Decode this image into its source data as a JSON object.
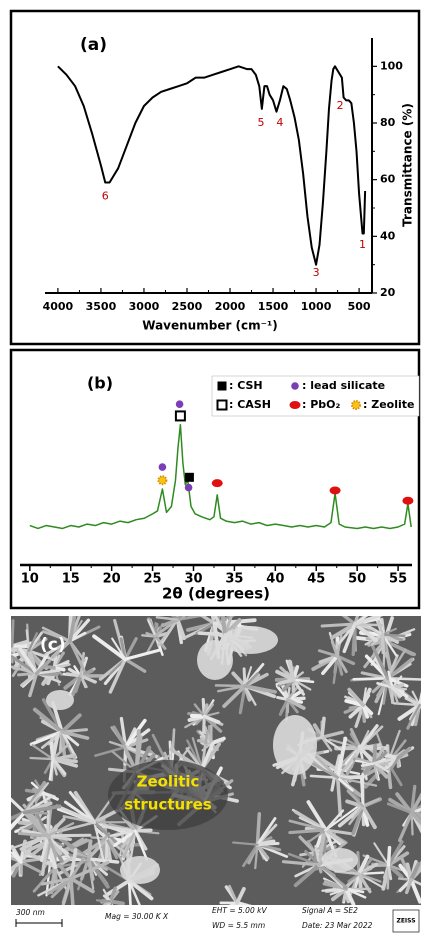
{
  "chart_data": [
    {
      "type": "line",
      "title": "(a)",
      "x_label": "Wavenumber (cm⁻¹)",
      "y_label": "Transmittance (%)",
      "color": "#000000",
      "x": [
        4000,
        3900,
        3800,
        3700,
        3600,
        3500,
        3450,
        3400,
        3300,
        3200,
        3100,
        3000,
        2900,
        2800,
        2700,
        2600,
        2500,
        2450,
        2400,
        2300,
        2200,
        2100,
        2000,
        1900,
        1800,
        1750,
        1700,
        1660,
        1630,
        1600,
        1570,
        1540,
        1500,
        1460,
        1420,
        1380,
        1340,
        1300,
        1250,
        1200,
        1150,
        1100,
        1050,
        1000,
        960,
        920,
        880,
        850,
        820,
        800,
        780,
        740,
        700,
        680,
        650,
        620,
        590,
        560,
        530,
        500,
        480,
        460,
        445,
        430
      ],
      "values": [
        100,
        97,
        93,
        86,
        76,
        65,
        59,
        59,
        64,
        72,
        80,
        86,
        89,
        91,
        92,
        93,
        94,
        95,
        96,
        96,
        97,
        98,
        99,
        100,
        99,
        99,
        97,
        93,
        85,
        93,
        93,
        90,
        88,
        84,
        88,
        93,
        92,
        88,
        82,
        74,
        62,
        47,
        36,
        30,
        37,
        52,
        70,
        85,
        95,
        99,
        100,
        98,
        96,
        89,
        88,
        88,
        87,
        80,
        70,
        55,
        48,
        41,
        41,
        56
      ],
      "xlim": [
        4150,
        350
      ],
      "xticks": [
        4000,
        3500,
        3000,
        2500,
        2000,
        1500,
        1000,
        500
      ],
      "ylim": [
        20,
        110
      ],
      "yticks": [
        20,
        40,
        60,
        80,
        100
      ],
      "annotations": [
        {
          "text": "6",
          "x": 3450,
          "y": 54
        },
        {
          "text": "5",
          "x": 1640,
          "y": 80
        },
        {
          "text": "4",
          "x": 1420,
          "y": 80
        },
        {
          "text": "3",
          "x": 1000,
          "y": 27
        },
        {
          "text": "2",
          "x": 720,
          "y": 86
        },
        {
          "text": "1",
          "x": 460,
          "y": 37
        }
      ]
    },
    {
      "type": "line",
      "title": "(b)",
      "x_label": "2θ (degrees)",
      "color": "#2e8b1f",
      "x": [
        10,
        11,
        12,
        13,
        14,
        15,
        16,
        17,
        18,
        19,
        20,
        21,
        22,
        23,
        24,
        25,
        25.6,
        26.2,
        26.7,
        27.3,
        27.8,
        28.1,
        28.4,
        28.7,
        29.0,
        29.3,
        29.7,
        30.2,
        31,
        32,
        32.5,
        32.9,
        33.3,
        34,
        35,
        36,
        37,
        38,
        39,
        40,
        41,
        42,
        43,
        44,
        45,
        46,
        46.8,
        47.3,
        47.8,
        48.5,
        50,
        51,
        52,
        53,
        54,
        55,
        55.8,
        56.2,
        56.6
      ],
      "values": [
        27,
        25,
        27,
        26,
        25,
        27,
        26,
        28,
        27,
        29,
        28,
        30,
        29,
        31,
        32,
        35,
        37,
        52,
        36,
        40,
        58,
        80,
        96,
        70,
        55,
        58,
        40,
        35,
        33,
        31,
        33,
        48,
        32,
        30,
        29,
        30,
        28,
        29,
        27,
        28,
        27,
        26,
        27,
        26,
        27,
        26,
        29,
        49,
        28,
        26,
        25,
        26,
        25,
        26,
        25,
        26,
        28,
        42,
        26
      ],
      "xlim": [
        8.8,
        56.7
      ],
      "xticks": [
        10,
        15,
        20,
        25,
        30,
        35,
        40,
        45,
        50,
        55
      ],
      "ylim": [
        0,
        130
      ],
      "phases": [
        {
          "name": ": CSH",
          "shape": "filled-square",
          "color": "#000000",
          "points": [
            {
              "x": 29.5,
              "y": 60
            }
          ]
        },
        {
          "name": ": lead silicate",
          "shape": "circle",
          "color": "#7b3fb5",
          "points": [
            {
              "x": 28.3,
              "y": 110
            },
            {
              "x": 26.2,
              "y": 67
            },
            {
              "x": 29.4,
              "y": 53
            }
          ]
        },
        {
          "name": ": CASH",
          "shape": "open-square",
          "color": "#000000",
          "points": [
            {
              "x": 28.4,
              "y": 102
            }
          ]
        },
        {
          "name": ": PbO₂",
          "shape": "ellipse",
          "color": "#e01010",
          "points": [
            {
              "x": 32.9,
              "y": 56
            },
            {
              "x": 47.3,
              "y": 51
            },
            {
              "x": 56.2,
              "y": 44
            }
          ]
        },
        {
          "name": ": Zeolite",
          "shape": "sun",
          "color": "#f5c518",
          "points": [
            {
              "x": 26.2,
              "y": 58
            }
          ]
        }
      ]
    }
  ],
  "image": {
    "panel_label": "(c)",
    "annotation": [
      "Zeolitic",
      "structures"
    ],
    "scale_bar": "300 nm",
    "mag": "Mag =  30.00 K X",
    "eht": "EHT = 5.00 kV",
    "wd": "WD =  5.5 mm",
    "signal": "Signal A = SE2",
    "date": "Date: 23 Mar 2022",
    "brand": "ZEISS"
  }
}
